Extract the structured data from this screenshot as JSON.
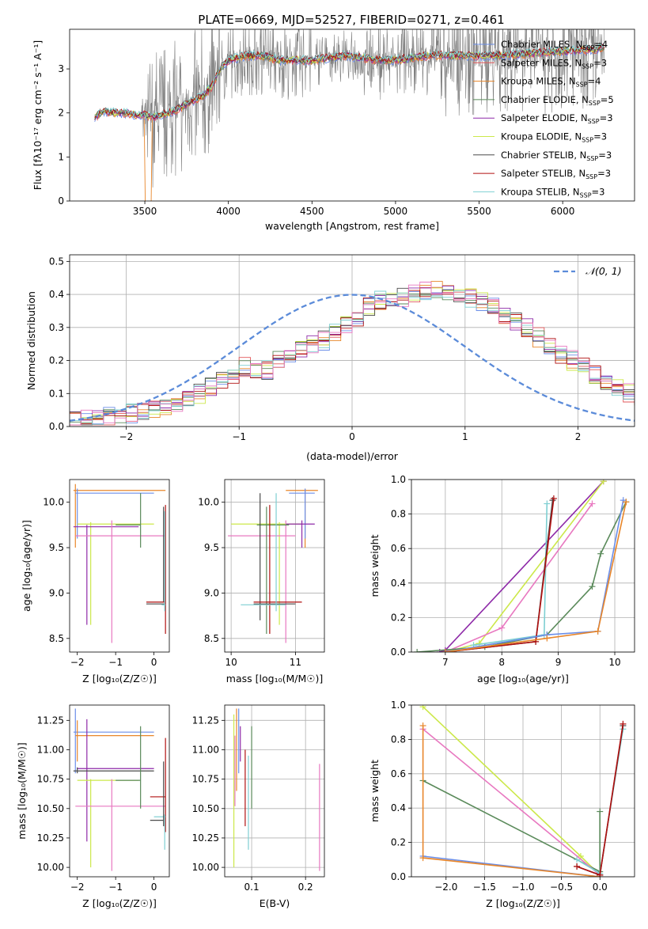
{
  "figure_title": "PLATE=0669, MJD=52527, FIBERID=0271, z=0.461",
  "colors": {
    "Chabrier MILES": "#6b8ee8",
    "Salpeter MILES": "#e15759",
    "Kroupa MILES": "#e8862a",
    "Chabrier ELODIE": "#5a8a5a",
    "Salpeter ELODIE": "#8e2aa8",
    "Kroupa ELODIE": "#cce84a",
    "Chabrier STELIB": "#4a4a4a",
    "Salpeter STELIB": "#b01010",
    "Kroupa STELIB": "#7ecfd2",
    "gray_spectrum": "#808080",
    "pink": "#e878c0"
  },
  "chart_data": [
    {
      "id": "spectrum",
      "type": "line",
      "title": "PLATE=0669, MJD=52527, FIBERID=0271, z=0.461",
      "xlabel": "wavelength [Angstrom, rest frame]",
      "ylabel": "Flux [fλ10⁻¹⁷ erg cm⁻² s⁻¹ A⁻¹]",
      "xlim": [
        3050,
        6430
      ],
      "ylim": [
        0,
        3.9
      ],
      "xticks": [
        3500,
        4000,
        4500,
        5000,
        5500,
        6000
      ],
      "yticks": [
        0,
        1,
        2,
        3
      ],
      "legend_position": "top-right",
      "legend": [
        {
          "label": "Chabrier MILES, N",
          "sub": "SSP",
          "suffix": "=4"
        },
        {
          "label": "Salpeter MILES, N",
          "sub": "SSP",
          "suffix": "=3"
        },
        {
          "label": "Kroupa MILES, N",
          "sub": "SSP",
          "suffix": "=4"
        },
        {
          "label": "Chabrier ELODIE, N",
          "sub": "SSP",
          "suffix": "=5"
        },
        {
          "label": "Salpeter ELODIE, N",
          "sub": "SSP",
          "suffix": "=3"
        },
        {
          "label": "Kroupa ELODIE, N",
          "sub": "SSP",
          "suffix": "=3"
        },
        {
          "label": "Chabrier STELIB, N",
          "sub": "SSP",
          "suffix": "=3"
        },
        {
          "label": "Salpeter STELIB, N",
          "sub": "SSP",
          "suffix": "=3"
        },
        {
          "label": "Kroupa STELIB, N",
          "sub": "SSP",
          "suffix": "=3"
        }
      ],
      "model_curve": {
        "x": [
          3200,
          3250,
          3300,
          3350,
          3400,
          3450,
          3500,
          3550,
          3600,
          3650,
          3700,
          3750,
          3800,
          3850,
          3900,
          3950,
          4000,
          4100,
          4200,
          4300,
          4400,
          4500,
          4600,
          4700,
          4800,
          4900,
          5000,
          5200,
          5400,
          5600,
          5800,
          6000,
          6200,
          6250
        ],
        "y": [
          1.9,
          2.05,
          2.0,
          2.0,
          2.0,
          1.95,
          1.95,
          1.9,
          1.95,
          2.0,
          2.1,
          2.2,
          2.3,
          2.4,
          2.6,
          3.0,
          3.2,
          3.3,
          3.3,
          3.2,
          3.2,
          3.2,
          3.25,
          3.3,
          3.25,
          3.2,
          3.2,
          3.3,
          3.3,
          3.3,
          3.35,
          3.4,
          3.45,
          3.5
        ]
      }
    },
    {
      "id": "residuals",
      "type": "line",
      "xlabel": "(data-model)/error",
      "ylabel": "Normed distribution",
      "xlim": [
        -2.5,
        2.5
      ],
      "ylim": [
        0,
        0.52
      ],
      "xticks": [
        -2,
        -1,
        0,
        1,
        2
      ],
      "yticks": [
        0.0,
        0.1,
        0.2,
        0.3,
        0.4,
        0.5
      ],
      "grid": true,
      "legend_position": "top-right",
      "reference_label": "𝒩(0, 1)",
      "bin_width": 0.1,
      "hist_centers_from": -2.45,
      "hist_base": [
        0.02,
        0.02,
        0.02,
        0.03,
        0.03,
        0.04,
        0.05,
        0.05,
        0.06,
        0.07,
        0.08,
        0.1,
        0.12,
        0.14,
        0.16,
        0.18,
        0.17,
        0.17,
        0.2,
        0.22,
        0.24,
        0.25,
        0.26,
        0.28,
        0.31,
        0.33,
        0.36,
        0.38,
        0.39,
        0.39,
        0.4,
        0.41,
        0.42,
        0.41,
        0.4,
        0.39,
        0.38,
        0.36,
        0.34,
        0.32,
        0.3,
        0.27,
        0.25,
        0.22,
        0.2,
        0.18,
        0.16,
        0.14,
        0.12,
        0.1,
        0.09,
        0.08,
        0.07,
        0.06,
        0.05,
        0.04,
        0.04,
        0.03,
        0.03,
        0.03
      ]
    },
    {
      "id": "age_vs_Z",
      "type": "scatter",
      "xlabel": "Z [log₁₀(Z/Z☉)]",
      "ylabel": "age  [log₁₀(age/yr)]",
      "xlim": [
        -2.2,
        0.4
      ],
      "ylim": [
        8.35,
        10.25
      ],
      "xticks": [
        -2,
        -1,
        0
      ],
      "yticks": [
        8.5,
        9.0,
        9.5,
        10.0
      ]
    },
    {
      "id": "age_vs_mass",
      "type": "scatter",
      "xlabel": "mass [log₁₀(M/M☉)]",
      "ylabel": "",
      "xlim": [
        9.9,
        11.45
      ],
      "ylim": [
        8.35,
        10.25
      ],
      "xticks": [
        10,
        11
      ],
      "yticks": [
        8.5,
        9.0,
        9.5,
        10.0
      ],
      "grid": true
    },
    {
      "id": "mass_weight_vs_age",
      "type": "line",
      "xlabel": "age  [log₁₀(age/yr)]",
      "ylabel": "mass weight",
      "xlim": [
        6.4,
        10.35
      ],
      "ylim": [
        0,
        1.0
      ],
      "xticks": [
        7,
        8,
        9,
        10
      ],
      "yticks": [
        0.0,
        0.2,
        0.4,
        0.6,
        0.8,
        1.0
      ],
      "grid": true
    },
    {
      "id": "mass_vs_Z",
      "type": "scatter",
      "xlabel": "Z [log₁₀(Z/Z☉)]",
      "ylabel": "mass [log₁₀(M/M☉)]",
      "xlim": [
        -2.2,
        0.4
      ],
      "ylim": [
        9.92,
        11.38
      ],
      "xticks": [
        -2,
        -1,
        0
      ],
      "yticks": [
        10.0,
        10.25,
        10.5,
        10.75,
        11.0,
        11.25
      ]
    },
    {
      "id": "mass_vs_ebv",
      "type": "scatter",
      "xlabel": "E(B-V)",
      "ylabel": "",
      "xlim": [
        0.05,
        0.235
      ],
      "ylim": [
        9.92,
        11.38
      ],
      "xticks": [
        0.1,
        0.2
      ],
      "yticks": [
        10.0,
        10.25,
        10.5,
        10.75,
        11.0,
        11.25
      ],
      "grid": true
    },
    {
      "id": "mass_weight_vs_Z",
      "type": "line",
      "xlabel": "Z [log₁₀(Z/Z☉)]",
      "ylabel": "mass weight",
      "xlim": [
        -2.45,
        0.45
      ],
      "ylim": [
        0,
        1.0
      ],
      "xticks": [
        -2.0,
        -1.5,
        -1.0,
        -0.5,
        0.0
      ],
      "yticks": [
        0.0,
        0.2,
        0.4,
        0.6,
        0.8,
        1.0
      ],
      "grid": true
    }
  ]
}
